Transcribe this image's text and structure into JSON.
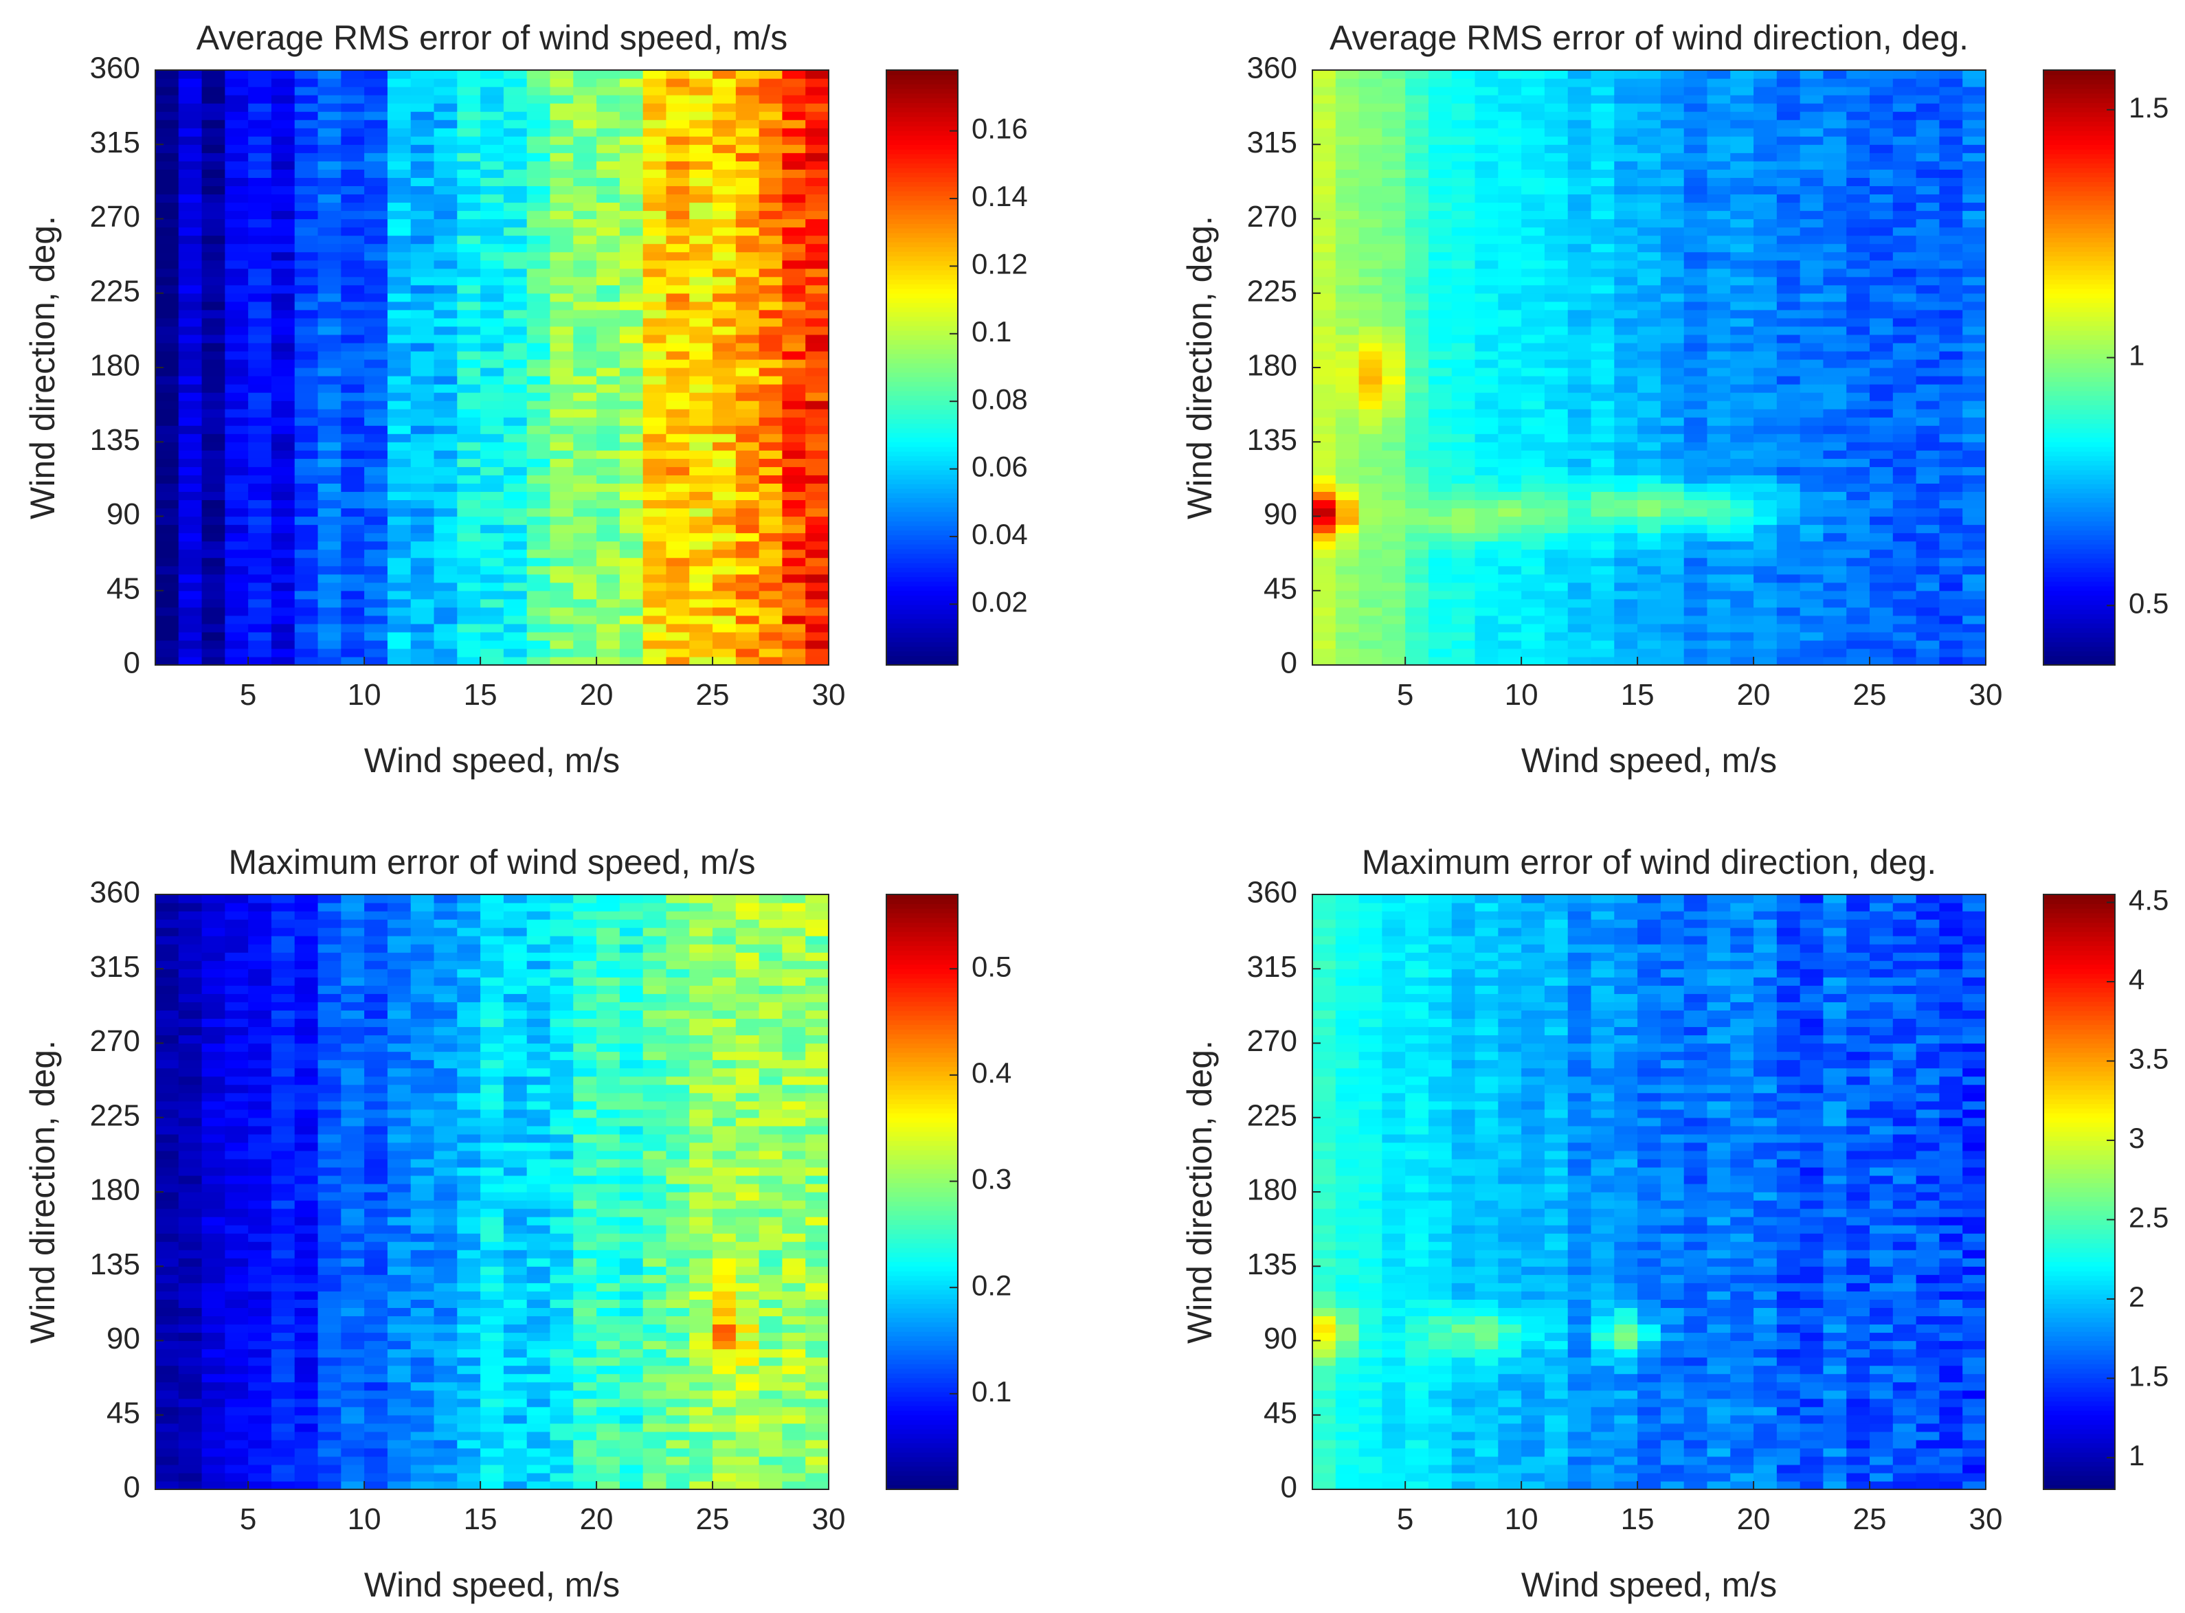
{
  "figure": {
    "panels": 4,
    "layout": "2x2 grid",
    "colormap": "jet"
  },
  "chart_data": [
    {
      "id": "rms_speed",
      "type": "heatmap",
      "title": "Average RMS error of wind speed, m/s",
      "xlabel": "Wind speed, m/s",
      "ylabel": "Wind direction, deg.",
      "xlim": [
        1,
        30
      ],
      "ylim": [
        0,
        360
      ],
      "x_ticks": [
        5,
        10,
        15,
        20,
        25,
        30
      ],
      "y_ticks": [
        0,
        45,
        90,
        135,
        180,
        225,
        270,
        315,
        360
      ],
      "n_speed_bins": 29,
      "n_direction_bins": 72,
      "colorbar": {
        "range": [
          0.002,
          0.178
        ],
        "ticks": [
          0.02,
          0.04,
          0.06,
          0.08,
          0.1,
          0.12,
          0.14,
          0.16
        ],
        "tick_labels": [
          "0.02",
          "0.04",
          "0.06",
          "0.08",
          "0.1",
          "0.12",
          "0.14",
          "0.16"
        ]
      },
      "speed_profile": {
        "speeds": [
          1,
          3,
          5,
          7,
          10,
          13,
          15,
          18,
          20,
          22,
          24,
          26,
          28,
          30
        ],
        "mean_error": [
          0.008,
          0.012,
          0.02,
          0.03,
          0.045,
          0.06,
          0.07,
          0.085,
          0.095,
          0.105,
          0.12,
          0.13,
          0.14,
          0.145
        ]
      },
      "noise_amplitude": 0.025,
      "hotspots": []
    },
    {
      "id": "rms_direction",
      "type": "heatmap",
      "title": "Average RMS error of wind direction, deg.",
      "xlabel": "Wind speed, m/s",
      "ylabel": "Wind direction, deg.",
      "xlim": [
        1,
        30
      ],
      "ylim": [
        0,
        360
      ],
      "x_ticks": [
        5,
        10,
        15,
        20,
        25,
        30
      ],
      "y_ticks": [
        0,
        45,
        90,
        135,
        180,
        225,
        270,
        315,
        360
      ],
      "n_speed_bins": 29,
      "n_direction_bins": 72,
      "colorbar": {
        "range": [
          0.38,
          1.58
        ],
        "ticks": [
          0.5,
          1,
          1.5
        ],
        "tick_labels": [
          "0.5",
          "1",
          "1.5"
        ]
      },
      "speed_profile": {
        "speeds": [
          1,
          3,
          5,
          7,
          10,
          13,
          15,
          18,
          20,
          22,
          24,
          26,
          28,
          30
        ],
        "mean_error": [
          1.1,
          1.0,
          0.92,
          0.86,
          0.82,
          0.78,
          0.72,
          0.7,
          0.68,
          0.66,
          0.66,
          0.65,
          0.65,
          0.64
        ]
      },
      "noise_amplitude": 0.09,
      "hotspots": [
        {
          "speed": 1.5,
          "direction": 92,
          "value": 1.5,
          "spread_speed": 1.2,
          "spread_direction": 14
        },
        {
          "speed": 3.5,
          "direction": 175,
          "value": 1.22,
          "spread_speed": 1.2,
          "spread_direction": 25
        },
        {
          "speed": 8,
          "direction": 90,
          "value": 1.02,
          "spread_speed": 3.5,
          "spread_direction": 15
        },
        {
          "speed": 16,
          "direction": 95,
          "value": 0.96,
          "spread_speed": 5,
          "spread_direction": 16
        }
      ]
    },
    {
      "id": "max_speed",
      "type": "heatmap",
      "title": "Maximum error of wind speed, m/s",
      "xlabel": "Wind speed, m/s",
      "ylabel": "Wind direction, deg.",
      "xlim": [
        1,
        30
      ],
      "ylim": [
        0,
        360
      ],
      "x_ticks": [
        5,
        10,
        15,
        20,
        25,
        30
      ],
      "y_ticks": [
        0,
        45,
        90,
        135,
        180,
        225,
        270,
        315,
        360
      ],
      "n_speed_bins": 29,
      "n_direction_bins": 72,
      "colorbar": {
        "range": [
          0.01,
          0.57
        ],
        "ticks": [
          0.1,
          0.2,
          0.3,
          0.4,
          0.5
        ],
        "tick_labels": [
          "0.1",
          "0.2",
          "0.3",
          "0.4",
          "0.5"
        ]
      },
      "speed_profile": {
        "speeds": [
          1,
          3,
          5,
          7,
          10,
          13,
          15,
          18,
          20,
          22,
          24,
          26,
          28,
          30
        ],
        "mean_error": [
          0.03,
          0.05,
          0.07,
          0.1,
          0.13,
          0.17,
          0.2,
          0.22,
          0.24,
          0.26,
          0.28,
          0.29,
          0.29,
          0.3
        ]
      },
      "noise_amplitude": 0.07,
      "hotspots": [
        {
          "speed": 25.5,
          "direction": 100,
          "value": 0.4,
          "spread_speed": 1,
          "spread_direction": 30
        }
      ]
    },
    {
      "id": "max_direction",
      "type": "heatmap",
      "title": "Maximum error of wind direction, deg.",
      "xlabel": "Wind speed, m/s",
      "ylabel": "Wind direction, deg.",
      "xlim": [
        1,
        30
      ],
      "ylim": [
        0,
        360
      ],
      "x_ticks": [
        5,
        10,
        15,
        20,
        25,
        30
      ],
      "y_ticks": [
        0,
        45,
        90,
        135,
        180,
        225,
        270,
        315,
        360
      ],
      "n_speed_bins": 29,
      "n_direction_bins": 72,
      "colorbar": {
        "range": [
          0.8,
          4.55
        ],
        "ticks": [
          1,
          1.5,
          2,
          2.5,
          3,
          3.5,
          4,
          4.5
        ],
        "tick_labels": [
          "1",
          "1.5",
          "2",
          "2.5",
          "3",
          "3.5",
          "4",
          "4.5"
        ]
      },
      "speed_profile": {
        "speeds": [
          1,
          3,
          5,
          7,
          10,
          13,
          15,
          18,
          20,
          22,
          24,
          26,
          28,
          30
        ],
        "mean_error": [
          2.4,
          2.25,
          2.1,
          2.0,
          1.95,
          1.85,
          1.78,
          1.7,
          1.65,
          1.62,
          1.6,
          1.55,
          1.55,
          1.55
        ]
      },
      "noise_amplitude": 0.35,
      "hotspots": [
        {
          "speed": 1.5,
          "direction": 95,
          "value": 3.2,
          "spread_speed": 1.2,
          "spread_direction": 15
        },
        {
          "speed": 8,
          "direction": 95,
          "value": 2.6,
          "spread_speed": 2.5,
          "spread_direction": 15
        },
        {
          "speed": 14.5,
          "direction": 95,
          "value": 2.6,
          "spread_speed": 1.2,
          "spread_direction": 14
        }
      ]
    }
  ]
}
